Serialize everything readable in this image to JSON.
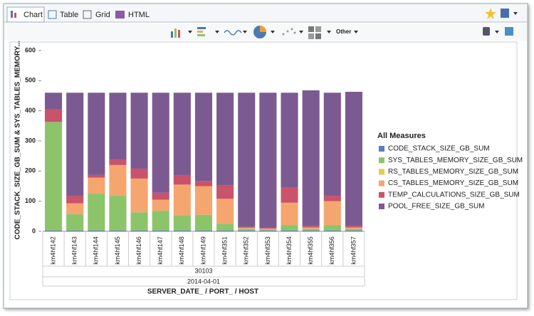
{
  "tabs": [
    "Chart",
    "Table",
    "Grid",
    "HTML"
  ],
  "toolbar": {
    "other": "Other"
  },
  "chart_data": {
    "type": "stacked-bar",
    "y_label": "CODE_STACK_SIZE_GB_SUM & SYS_TABLES_MEMORY...",
    "x_label": "SERVER_DATE_ / PORT_ / HOST",
    "x_groups": [
      "30103",
      "2014-04-01"
    ],
    "legend_title": "All Measures",
    "categories": [
      "km4hf142",
      "km4hf143",
      "km4hf144",
      "km4hf145",
      "km4hf146",
      "km4hf147",
      "km4hf148",
      "km4hf149",
      "km4hf351",
      "km4hf352",
      "km4hf353",
      "km4hf354",
      "km4hf355",
      "km4hf356",
      "km4hf357"
    ],
    "series": [
      {
        "name": "CODE_STACK_SIZE_GB_SUM",
        "color": "#5b7fb5",
        "values": [
          3,
          3,
          3,
          3,
          3,
          3,
          3,
          3,
          3,
          3,
          3,
          3,
          3,
          3,
          3
        ]
      },
      {
        "name": "SYS_TABLES_MEMORY_SIZE_GB_SUM",
        "color": "#8cc46a",
        "values": [
          360,
          54,
          122,
          115,
          60,
          65,
          49,
          52,
          22,
          5,
          3,
          17,
          5,
          17,
          5
        ]
      },
      {
        "name": "RS_TABLES_MEMORY_SIZE_GB_SUM",
        "color": "#e8c94b",
        "values": [
          0,
          0,
          0,
          0,
          0,
          0,
          0,
          0,
          0,
          0,
          0,
          0,
          0,
          0,
          0
        ]
      },
      {
        "name": "CS_TABLES_MEMORY_SIZE_GB_SUM",
        "color": "#f5a56e",
        "values": [
          0,
          36,
          53,
          102,
          112,
          37,
          103,
          95,
          83,
          4,
          3,
          75,
          5,
          80,
          5
        ]
      },
      {
        "name": "TEMP_CALCULATIONS_SIZE_GB_SUM",
        "color": "#c9536a",
        "values": [
          42,
          25,
          9,
          17,
          33,
          23,
          30,
          17,
          44,
          3,
          3,
          50,
          5,
          18,
          5
        ]
      },
      {
        "name": "POOL_FREE_SIZE_GB_SUM",
        "color": "#7b5a91",
        "values": [
          55,
          342,
          273,
          223,
          252,
          332,
          275,
          293,
          308,
          445,
          448,
          315,
          450,
          342,
          445
        ]
      }
    ],
    "ylim": [
      0,
      600
    ],
    "yticks": [
      0,
      100,
      200,
      300,
      400,
      500,
      600
    ],
    "grid": false
  }
}
